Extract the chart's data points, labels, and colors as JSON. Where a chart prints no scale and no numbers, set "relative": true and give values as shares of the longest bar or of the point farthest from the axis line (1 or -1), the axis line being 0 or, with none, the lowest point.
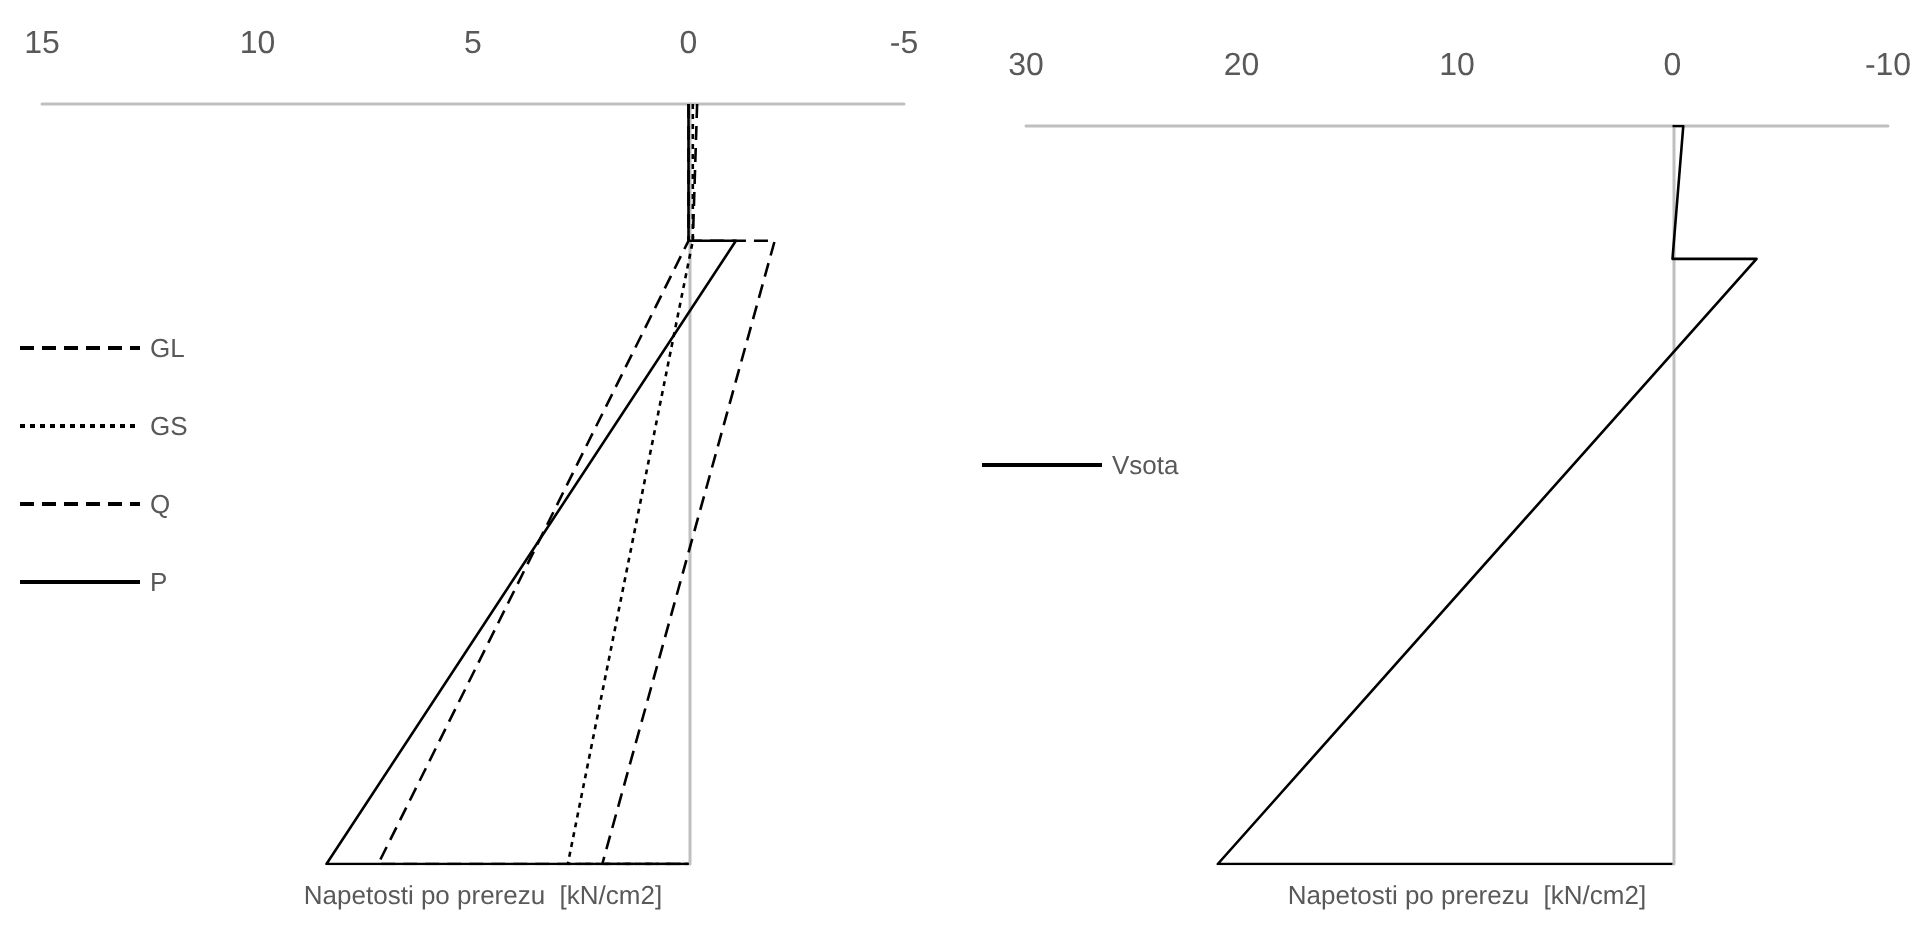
{
  "chart_data": [
    {
      "type": "line",
      "relative": true,
      "xlabel": "Napetosti po prerezu  [kN/cm2]",
      "xlim": [
        15,
        -5
      ],
      "xticks": [
        15,
        10,
        5,
        0,
        -5
      ],
      "tick_labels": "x",
      "legend": "left",
      "marker": "none",
      "series": [
        {
          "name": "GL",
          "color": "#000000",
          "line_style": "dashed",
          "x": [
            -0.2,
            -0.1,
            -2.0,
            2.0,
            0
          ],
          "values": [
            0,
            -0.18,
            -0.18,
            -1,
            -1
          ]
        },
        {
          "name": "GS",
          "color": "#000000",
          "line_style": "dotted",
          "x": [
            -0.1,
            -0.1,
            -0.1,
            2.8,
            0
          ],
          "values": [
            0,
            -0.18,
            -0.18,
            -1,
            -1
          ]
        },
        {
          "name": "Q",
          "color": "#000000",
          "line_style": "dashed",
          "x": [
            0,
            0,
            0,
            7.2,
            0
          ],
          "values": [
            0,
            -0.18,
            -0.18,
            -1,
            -1
          ]
        },
        {
          "name": "P",
          "color": "#000000",
          "line_style": "solid",
          "x": [
            0,
            0,
            -1.1,
            8.4,
            0
          ],
          "values": [
            0,
            -0.18,
            -0.18,
            -1,
            -1
          ]
        }
      ]
    },
    {
      "type": "line",
      "relative": true,
      "xlabel": "Napetosti po prerezu  [kN/cm2]",
      "xlim": [
        30,
        -10
      ],
      "xticks": [
        30,
        20,
        10,
        0,
        -10
      ],
      "tick_labels": "x",
      "legend": "left",
      "marker": "none",
      "series": [
        {
          "name": "Vsota",
          "color": "#000000",
          "line_style": "solid",
          "x": [
            0,
            -0.5,
            0,
            -3.9,
            21.1,
            0
          ],
          "values": [
            0,
            0,
            -0.18,
            -0.18,
            -1,
            -1
          ]
        }
      ]
    }
  ]
}
